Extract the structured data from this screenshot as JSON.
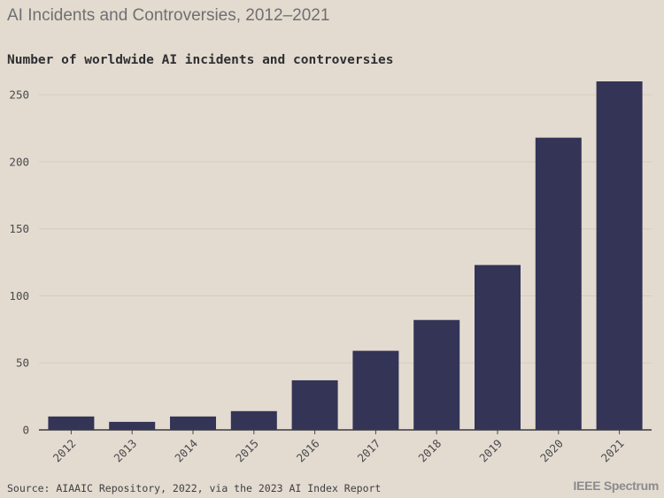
{
  "title": "AI Incidents and Controversies, 2012–2021",
  "source": "Source: AIAAIC Repository, 2022, via the 2023 AI Index Report",
  "brand": "IEEE Spectrum",
  "colors": {
    "bar": "#343457",
    "background": "#e3dbcf",
    "grid": "#d4ccbf"
  },
  "chart_data": {
    "type": "bar",
    "title": "Number of worldwide AI incidents and controversies",
    "xlabel": "",
    "ylabel": "",
    "categories": [
      "2012",
      "2013",
      "2014",
      "2015",
      "2016",
      "2017",
      "2018",
      "2019",
      "2020",
      "2021"
    ],
    "values": [
      10,
      6,
      10,
      14,
      37,
      59,
      82,
      123,
      218,
      260
    ],
    "ylim": [
      0,
      260
    ],
    "yticks": [
      0,
      50,
      100,
      150,
      200,
      250
    ],
    "grid": true
  }
}
